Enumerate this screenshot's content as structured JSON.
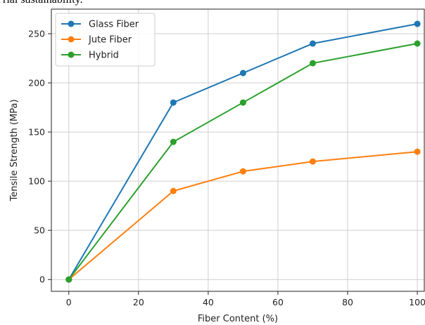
{
  "caption_fragment": "rial sustainability.",
  "chart_data": {
    "type": "line",
    "title": "",
    "xlabel": "Fiber Content (%)",
    "ylabel": "Tensile Strength (MPa)",
    "x": [
      0,
      30,
      50,
      70,
      100
    ],
    "xlim": [
      -5,
      102
    ],
    "ylim": [
      -12,
      275
    ],
    "xticks": [
      0,
      20,
      40,
      60,
      80,
      100
    ],
    "yticks": [
      0,
      50,
      100,
      150,
      200,
      250
    ],
    "grid": true,
    "legend_position": "top-left",
    "series": [
      {
        "name": "Glass Fiber",
        "color": "#1f77b4",
        "values": [
          0,
          180,
          210,
          240,
          260
        ]
      },
      {
        "name": "Jute Fiber",
        "color": "#ff7f0e",
        "values": [
          0,
          90,
          110,
          120,
          130
        ]
      },
      {
        "name": "Hybrid",
        "color": "#2ca02c",
        "values": [
          0,
          140,
          180,
          220,
          240
        ]
      }
    ]
  }
}
